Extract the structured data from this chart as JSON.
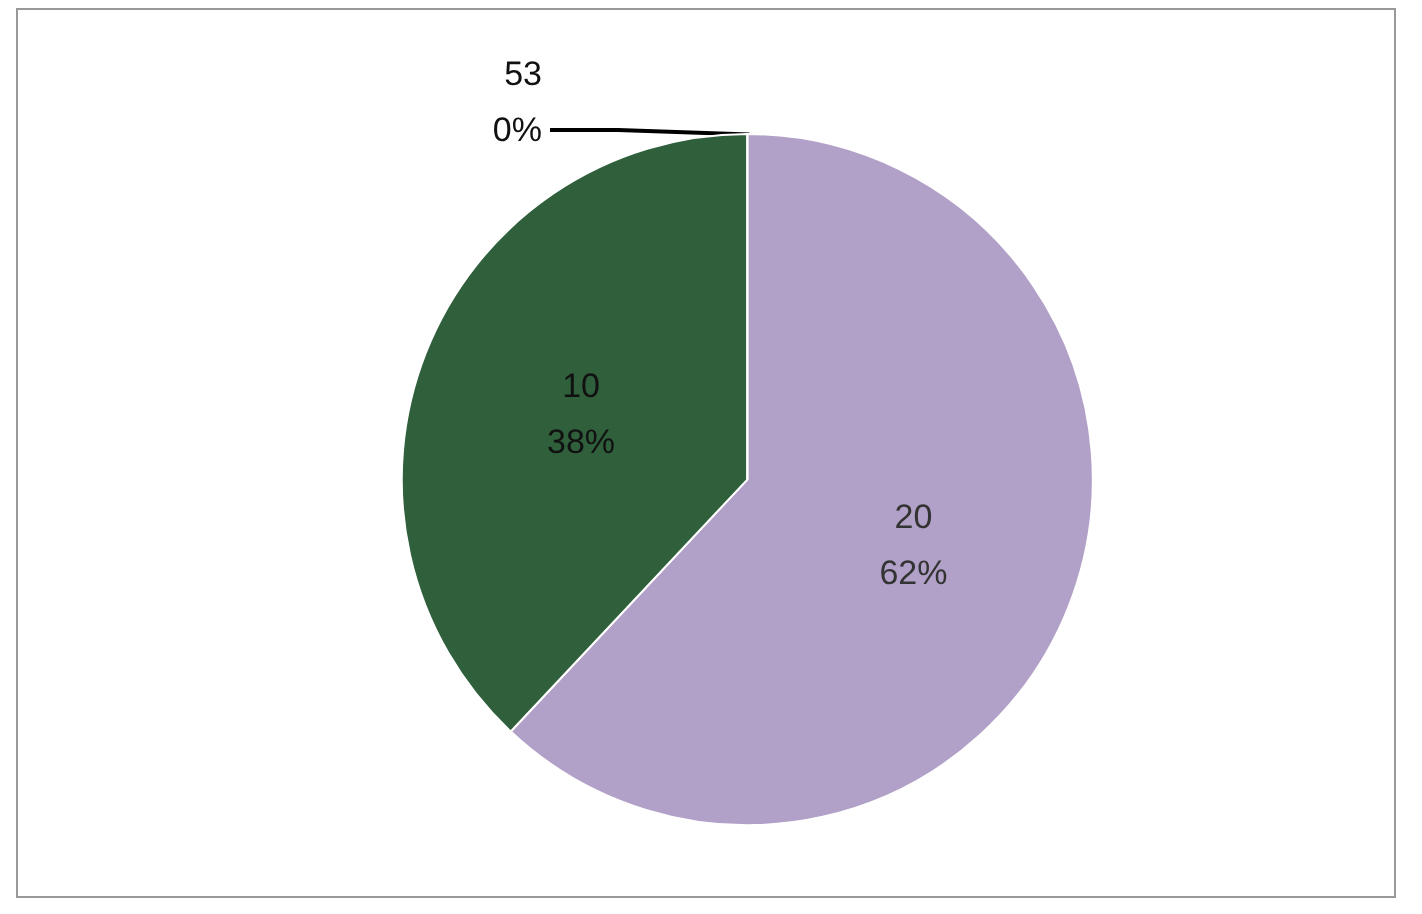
{
  "chart_data": {
    "type": "pie",
    "categories": [
      "20",
      "10",
      "53"
    ],
    "values": [
      62,
      38,
      0
    ],
    "colors": [
      "#b1a0c7",
      "#2f5f3b",
      "#1f3f28"
    ],
    "value_labels": [
      "62%",
      "38%",
      "0%"
    ]
  }
}
